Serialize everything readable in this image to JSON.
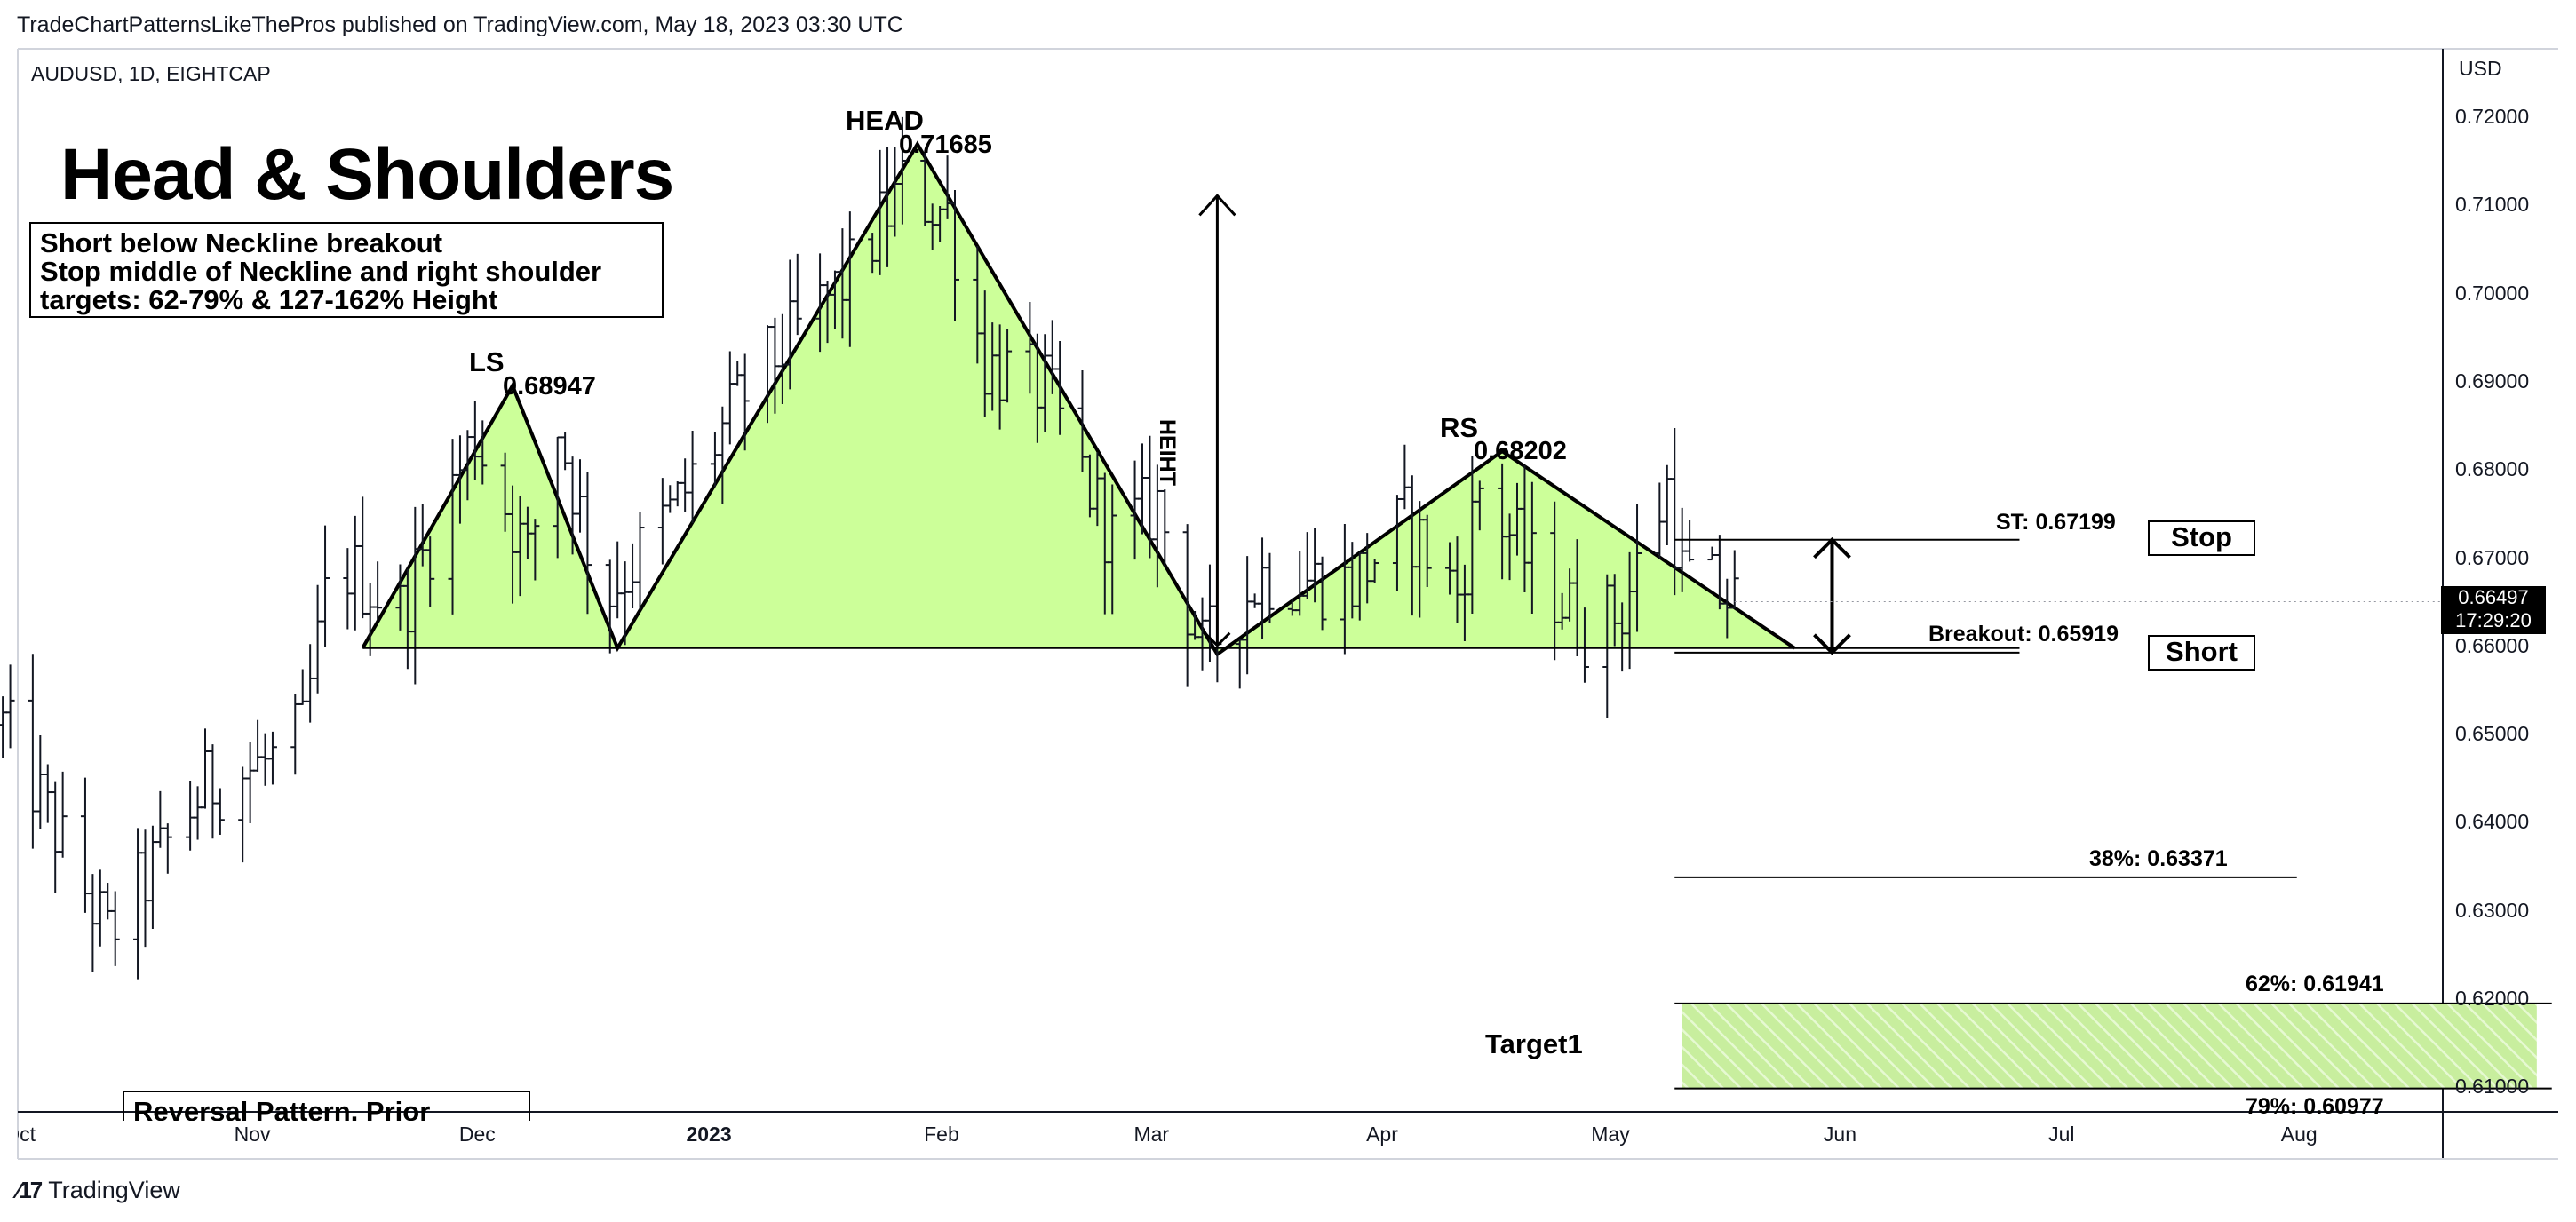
{
  "header": {
    "published_line": "TradeChartPatternsLikeThePros published on TradingView.com, May 18, 2023 03:30 UTC",
    "symbol_line": "AUDUSD, 1D, EIGHTCAP",
    "currency": "USD"
  },
  "annotations": {
    "title": "Head & Shoulders",
    "notes": [
      "Short below Neckline breakout",
      "Stop middle of Neckline and right shoulder",
      "targets: 62-79% & 127-162% Height"
    ],
    "reversal_box_text": "Reversal Pattern, Prior",
    "ls_label": "LS",
    "ls_value": "0.68947",
    "head_label": "HEAD",
    "head_value": "0.71685",
    "rs_label": "RS",
    "rs_value": "0.68202",
    "height_label": "HEIHT",
    "stop_line_label": "ST: 0.67199",
    "breakout_line_label": "Breakout: 0.65919",
    "fib38_label": "38%: 0.63371",
    "fib62_label": "62%: 0.61941",
    "fib79_label": "79%: 0.60977",
    "target_label": "Target1",
    "stop_box": "Stop",
    "short_box": "Short"
  },
  "price_badge": {
    "price": "0.66497",
    "countdown": "17:29:20"
  },
  "footer": {
    "brand": "TradingView"
  },
  "colors": {
    "pattern_fill": "#ccff99",
    "candle": "#131722",
    "axis_line": "#131722",
    "badge_bg": "#000000",
    "target_fill": "#c8ee9e"
  },
  "chart_data": {
    "type": "candlestick",
    "symbol": "AUDUSD",
    "interval": "1D",
    "y_axis": {
      "ticks": [
        "0.72000",
        "0.71000",
        "0.70000",
        "0.69000",
        "0.68000",
        "0.67000",
        "0.66000",
        "0.65000",
        "0.64000",
        "0.63000",
        "0.62000",
        "0.61000"
      ],
      "range": [
        0.6045,
        0.7245
      ]
    },
    "x_axis": {
      "ticks": [
        {
          "label": "Oct",
          "date": "2022-10-01",
          "bold": false
        },
        {
          "label": "Nov",
          "date": "2022-11-01",
          "bold": false
        },
        {
          "label": "Dec",
          "date": "2022-12-01",
          "bold": false
        },
        {
          "label": "2023",
          "date": "2023-01-01",
          "bold": true
        },
        {
          "label": "Feb",
          "date": "2023-02-01",
          "bold": false
        },
        {
          "label": "Mar",
          "date": "2023-03-01",
          "bold": false
        },
        {
          "label": "Apr",
          "date": "2023-04-01",
          "bold": false
        },
        {
          "label": "May",
          "date": "2023-05-01",
          "bold": false
        },
        {
          "label": "Jun",
          "date": "2023-06-01",
          "bold": false
        },
        {
          "label": "Jul",
          "date": "2023-07-01",
          "bold": false
        },
        {
          "label": "Aug",
          "date": "2023-08-01",
          "bold": false
        }
      ]
    },
    "price_path": [
      {
        "x": "2022-09-29",
        "y": 0.651
      },
      {
        "x": "2022-10-13",
        "y": 0.627
      },
      {
        "x": "2022-10-26",
        "y": 0.644
      },
      {
        "x": "2022-11-04",
        "y": 0.647
      },
      {
        "x": "2022-11-08",
        "y": 0.65
      },
      {
        "x": "2022-11-12",
        "y": 0.67
      },
      {
        "x": "2022-11-21",
        "y": 0.664
      },
      {
        "x": "2022-12-01",
        "y": 0.684
      },
      {
        "x": "2022-12-08",
        "y": 0.67
      },
      {
        "x": "2022-12-12",
        "y": 0.685
      },
      {
        "x": "2022-12-18",
        "y": 0.665
      },
      {
        "x": "2022-12-28",
        "y": 0.676
      },
      {
        "x": "2023-01-07",
        "y": 0.69
      },
      {
        "x": "2023-01-20",
        "y": 0.702
      },
      {
        "x": "2023-01-27",
        "y": 0.712
      },
      {
        "x": "2023-02-02",
        "y": 0.709
      },
      {
        "x": "2023-02-07",
        "y": 0.692
      },
      {
        "x": "2023-02-15",
        "y": 0.689
      },
      {
        "x": "2023-02-24",
        "y": 0.672
      },
      {
        "x": "2023-03-02",
        "y": 0.676
      },
      {
        "x": "2023-03-08",
        "y": 0.659
      },
      {
        "x": "2023-03-16",
        "y": 0.668
      },
      {
        "x": "2023-03-28",
        "y": 0.667
      },
      {
        "x": "2023-04-04",
        "y": 0.674
      },
      {
        "x": "2023-04-11",
        "y": 0.666
      },
      {
        "x": "2023-04-14",
        "y": 0.678
      },
      {
        "x": "2023-04-20",
        "y": 0.67
      },
      {
        "x": "2023-04-28",
        "y": 0.662
      },
      {
        "x": "2023-05-03",
        "y": 0.664
      },
      {
        "x": "2023-05-09",
        "y": 0.678
      },
      {
        "x": "2023-05-11",
        "y": 0.668
      },
      {
        "x": "2023-05-18",
        "y": 0.665
      }
    ],
    "pattern": {
      "points": [
        {
          "name": "left-base",
          "x": "2022-11-16",
          "y": 0.6597
        },
        {
          "name": "LS",
          "x": "2022-12-06",
          "y": 0.68947
        },
        {
          "name": "left-trough",
          "x": "2022-12-20",
          "y": 0.6597
        },
        {
          "name": "HEAD",
          "x": "2023-01-29",
          "y": 0.71685
        },
        {
          "name": "right-trough",
          "x": "2023-03-10",
          "y": 0.659
        },
        {
          "name": "RS",
          "x": "2023-04-17",
          "y": 0.68202
        },
        {
          "name": "right-base",
          "x": "2023-05-26",
          "y": 0.6597
        }
      ]
    },
    "neckline": {
      "x_start": "2022-11-16",
      "x_end": "2023-06-25",
      "y": 0.6597
    },
    "height_arrow": {
      "x": "2023-03-10",
      "y_from": 0.66,
      "y_to": 0.711
    },
    "levels": [
      {
        "label": "ST: 0.67199",
        "y": 0.67199,
        "x_start": "2023-05-10",
        "x_end": "2023-06-25"
      },
      {
        "label": "Breakout: 0.65919",
        "y": 0.65919,
        "x_start": "2023-05-10",
        "x_end": "2023-06-25"
      },
      {
        "label": "38%: 0.63371",
        "y": 0.63371,
        "x_start": "2023-05-10",
        "x_end": "2023-08-01"
      },
      {
        "label": "62%: 0.61941",
        "y": 0.61941,
        "x_start": "2023-05-10",
        "x_end": "2023-09-04"
      },
      {
        "label": "79%: 0.60977",
        "y": 0.60977,
        "x_start": "2023-05-10",
        "x_end": "2023-09-04"
      }
    ],
    "target_zone": {
      "label": "Target1",
      "y_from": 0.60977,
      "y_to": 0.61941,
      "x_start": "2023-05-11",
      "x_end": "2023-09-02"
    },
    "stop_arrow": {
      "x": "2023-05-31",
      "y_from": 0.65919,
      "y_to": 0.67199
    },
    "last_price": 0.66497
  }
}
